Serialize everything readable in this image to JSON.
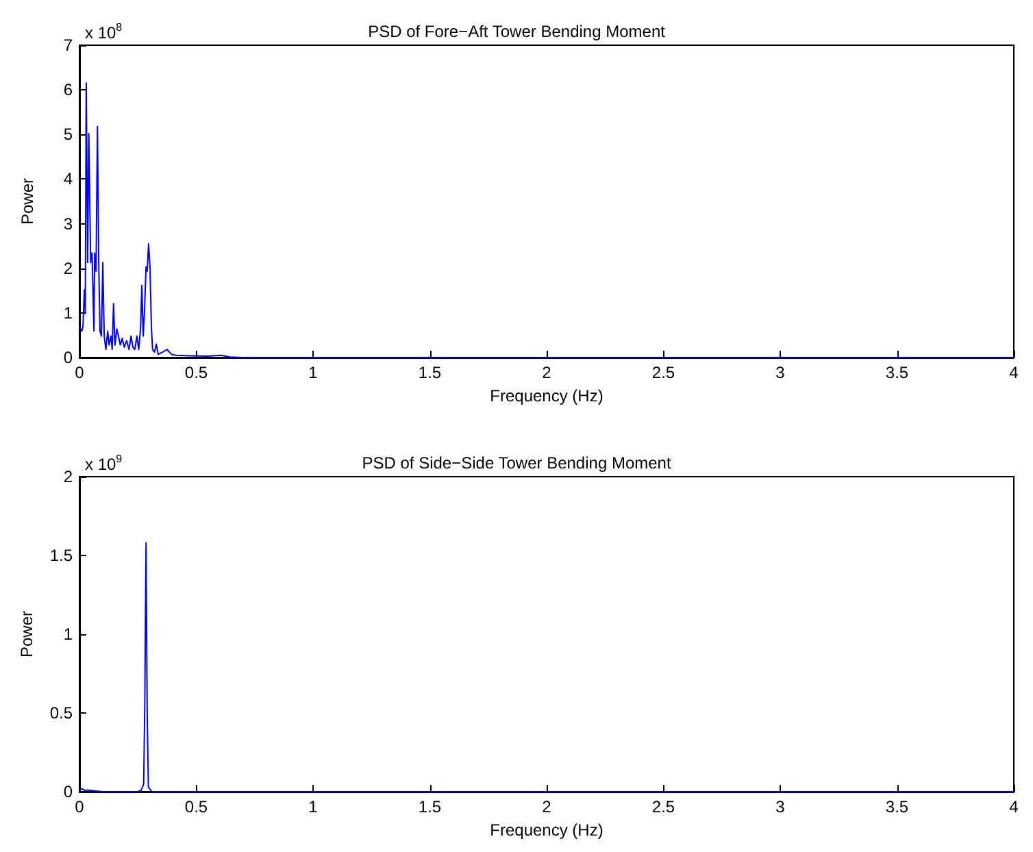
{
  "chart_data": [
    {
      "type": "line",
      "title": "PSD of Fore−Aft Tower Bending Moment",
      "xlabel": "Frequency (Hz)",
      "ylabel": "Power",
      "annotations": [
        "x 10$^{8}$"
      ],
      "x": [
        0,
        0.01,
        0.015,
        0.021,
        0.025,
        0.029,
        0.035,
        0.04,
        0.048,
        0.054,
        0.062,
        0.065,
        0.071,
        0.077,
        0.083,
        0.088,
        0.094,
        0.1,
        0.106,
        0.113,
        0.121,
        0.127,
        0.135,
        0.14,
        0.146,
        0.152,
        0.16,
        0.167,
        0.175,
        0.183,
        0.192,
        0.202,
        0.212,
        0.221,
        0.229,
        0.237,
        0.246,
        0.254,
        0.262,
        0.267,
        0.273,
        0.279,
        0.285,
        0.29,
        0.296,
        0.302,
        0.308,
        0.313,
        0.321,
        0.329,
        0.337,
        0.356,
        0.375,
        0.394,
        0.413,
        0.471,
        0.548,
        0.606,
        0.644,
        0.7,
        4
      ],
      "series": [
        {
          "color": "#0000ff",
          "values": [
            0.69,
            0.59,
            0.69,
            1.52,
            1.0,
            6.15,
            2.13,
            5.02,
            2.13,
            2.34,
            0.59,
            2.34,
            1.93,
            5.18,
            1.93,
            0.59,
            0.48,
            2.13,
            0.48,
            0.18,
            0.59,
            0.28,
            0.48,
            0.18,
            1.21,
            0.28,
            0.64,
            0.48,
            0.28,
            0.43,
            0.23,
            0.38,
            0.18,
            0.48,
            0.23,
            0.18,
            0.48,
            0.18,
            0.69,
            1.62,
            0.48,
            1.1,
            2.03,
            1.93,
            2.55,
            2.03,
            0.69,
            0.18,
            0.12,
            0.3,
            0.07,
            0.12,
            0.18,
            0.07,
            0.05,
            0.04,
            0.03,
            0.05,
            0.01,
            0,
            0
          ]
        }
      ],
      "xlim": [
        0,
        4
      ],
      "xticks": [
        0,
        0.5,
        1,
        1.5,
        2,
        2.5,
        3,
        3.5,
        4
      ],
      "ylim": [
        0,
        7
      ],
      "yticks": [
        0,
        1,
        2,
        3,
        4,
        5,
        6,
        7
      ],
      "grid": false
    },
    {
      "type": "line",
      "title": "PSD of Side−Side Tower Bending Moment",
      "xlabel": "Frequency (Hz)",
      "ylabel": "Power",
      "annotations": [
        "x 10$^{9}$"
      ],
      "x": [
        0,
        0.01,
        0.02,
        0.04,
        0.1,
        0.25,
        0.265,
        0.275,
        0.28,
        0.285,
        0.29,
        0.295,
        0.31,
        0.5,
        4
      ],
      "series": [
        {
          "color": "#0000ff",
          "values": [
            0.01,
            0.02,
            0.01,
            0.01,
            0,
            0,
            0.01,
            0.05,
            0.6,
            1.58,
            0.5,
            0.03,
            0,
            0,
            0
          ]
        }
      ],
      "xlim": [
        0,
        4
      ],
      "xticks": [
        0,
        0.5,
        1,
        1.5,
        2,
        2.5,
        3,
        3.5,
        4
      ],
      "ylim": [
        0,
        2
      ],
      "yticks": [
        0,
        0.5,
        1,
        1.5,
        2
      ],
      "grid": false
    }
  ]
}
